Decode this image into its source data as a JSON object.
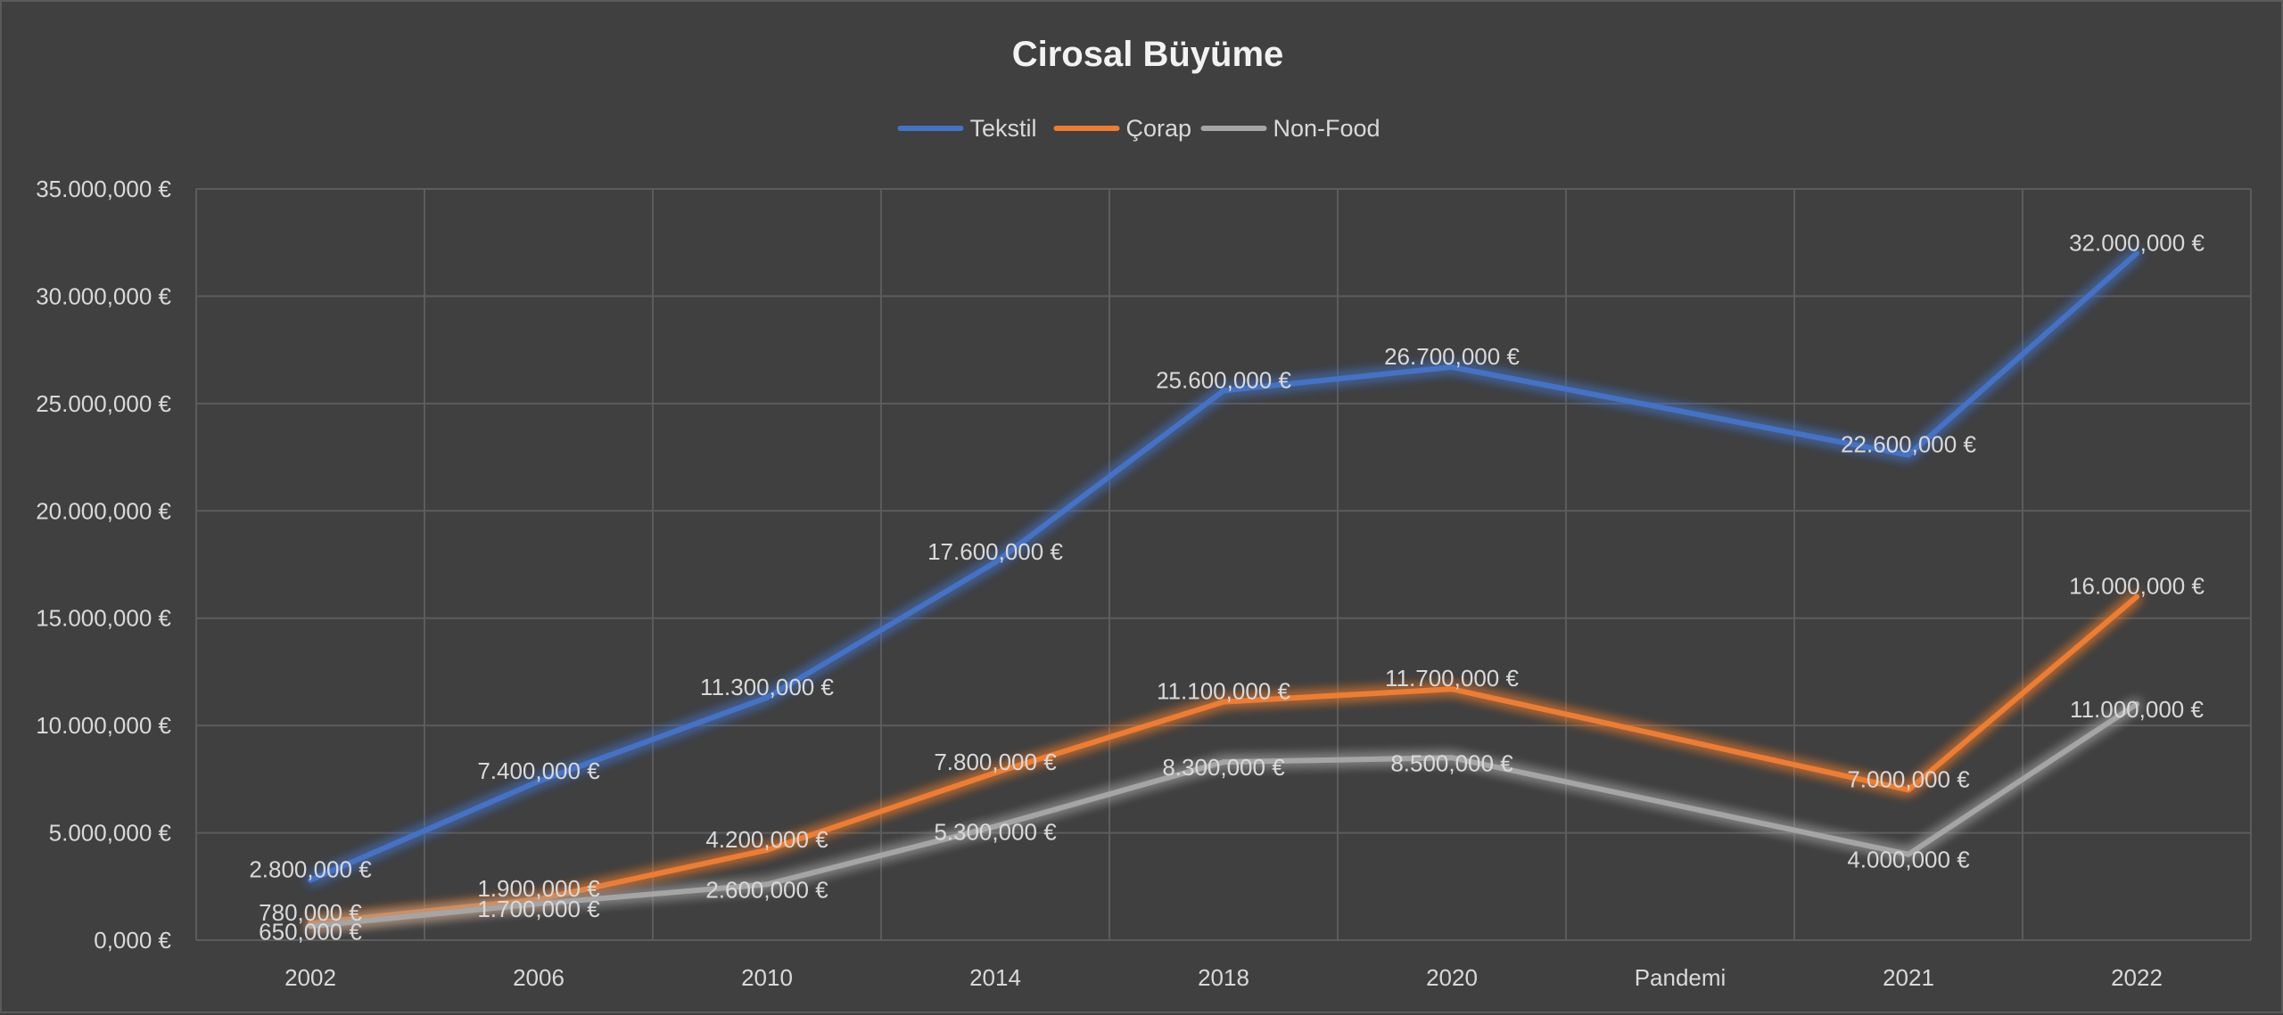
{
  "chart_data": {
    "type": "line",
    "title": "Cirosal Büyüme",
    "categories": [
      "2002",
      "2006",
      "2010",
      "2014",
      "2018",
      "2020",
      "Pandemi",
      "2021",
      "2022"
    ],
    "ylim": [
      0,
      35000000
    ],
    "y_tick_values": [
      0,
      5000000,
      10000000,
      15000000,
      20000000,
      25000000,
      30000000,
      35000000
    ],
    "y_tick_labels": [
      "0,000 €",
      "5.000,000 €",
      "10.000,000 €",
      "15.000,000 €",
      "20.000,000 €",
      "25.000,000 €",
      "30.000,000 €",
      "35.000,000 €"
    ],
    "legend_position": "top",
    "grid": true,
    "series": [
      {
        "name": "Tekstil",
        "color": "#4472c4",
        "points": [
          {
            "category": "2002",
            "value": 2800000,
            "label": "2.800,000 €"
          },
          {
            "category": "2006",
            "value": 7400000,
            "label": "7.400,000 €"
          },
          {
            "category": "2010",
            "value": 11300000,
            "label": "11.300,000 €"
          },
          {
            "category": "2014",
            "value": 17600000,
            "label": "17.600,000 €"
          },
          {
            "category": "2018",
            "value": 25600000,
            "label": "25.600,000 €"
          },
          {
            "category": "2020",
            "value": 26700000,
            "label": "26.700,000 €"
          },
          {
            "category": "2021",
            "value": 22600000,
            "label": "22.600,000 €"
          },
          {
            "category": "2022",
            "value": 32000000,
            "label": "32.000,000 €"
          }
        ]
      },
      {
        "name": "Çorap",
        "color": "#ed7d31",
        "points": [
          {
            "category": "2002",
            "value": 780000,
            "label": "780,000 €"
          },
          {
            "category": "2006",
            "value": 1900000,
            "label": "1.900,000 €"
          },
          {
            "category": "2010",
            "value": 4200000,
            "label": "4.200,000 €"
          },
          {
            "category": "2014",
            "value": 7800000,
            "label": "7.800,000 €"
          },
          {
            "category": "2018",
            "value": 11100000,
            "label": "11.100,000 €"
          },
          {
            "category": "2020",
            "value": 11700000,
            "label": "11.700,000 €"
          },
          {
            "category": "2021",
            "value": 7000000,
            "label": "7.000,000 €"
          },
          {
            "category": "2022",
            "value": 16000000,
            "label": "16.000,000 €"
          }
        ]
      },
      {
        "name": "Non-Food",
        "color": "#a5a5a5",
        "points": [
          {
            "category": "2002",
            "value": 650000,
            "label": "650,000 €"
          },
          {
            "category": "2006",
            "value": 1700000,
            "label": "1.700,000 €"
          },
          {
            "category": "2010",
            "value": 2600000,
            "label": "2.600,000 €"
          },
          {
            "category": "2014",
            "value": 5300000,
            "label": "5.300,000 €"
          },
          {
            "category": "2018",
            "value": 8300000,
            "label": "8.300,000 €"
          },
          {
            "category": "2020",
            "value": 8500000,
            "label": "8.500,000 €"
          },
          {
            "category": "2021",
            "value": 4000000,
            "label": "4.000,000 €"
          },
          {
            "category": "2022",
            "value": 11000000,
            "label": "11.000,000 €"
          }
        ]
      }
    ]
  }
}
